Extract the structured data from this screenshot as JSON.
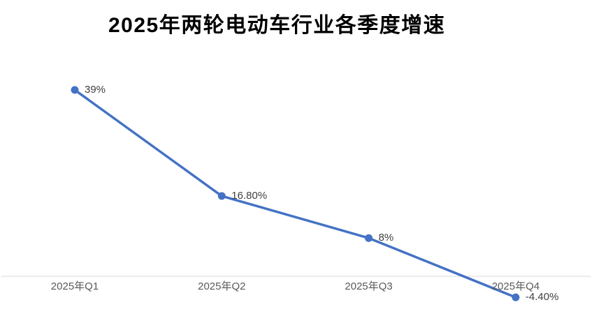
{
  "page": {
    "background": "#ffffff"
  },
  "chart_data": {
    "type": "line",
    "title": "2025年两轮电动车行业各季度增速",
    "categories": [
      "2025年Q1",
      "2025年Q2",
      "2025年Q3",
      "2025年Q4"
    ],
    "values": [
      39,
      16.8,
      8,
      -4.4
    ],
    "data_labels": [
      "39%",
      "16.80%",
      "8%",
      "-4.40%"
    ],
    "xlabel": "",
    "ylabel": "",
    "ylim": [
      -7,
      43
    ],
    "grid": false,
    "legend": "none",
    "colors": {
      "line": "#4472C4",
      "marker": "#4472C4",
      "axis_line": "#D9D9D9",
      "data_label": "#404040",
      "tick_label": "#595959",
      "title": "#000000"
    }
  }
}
